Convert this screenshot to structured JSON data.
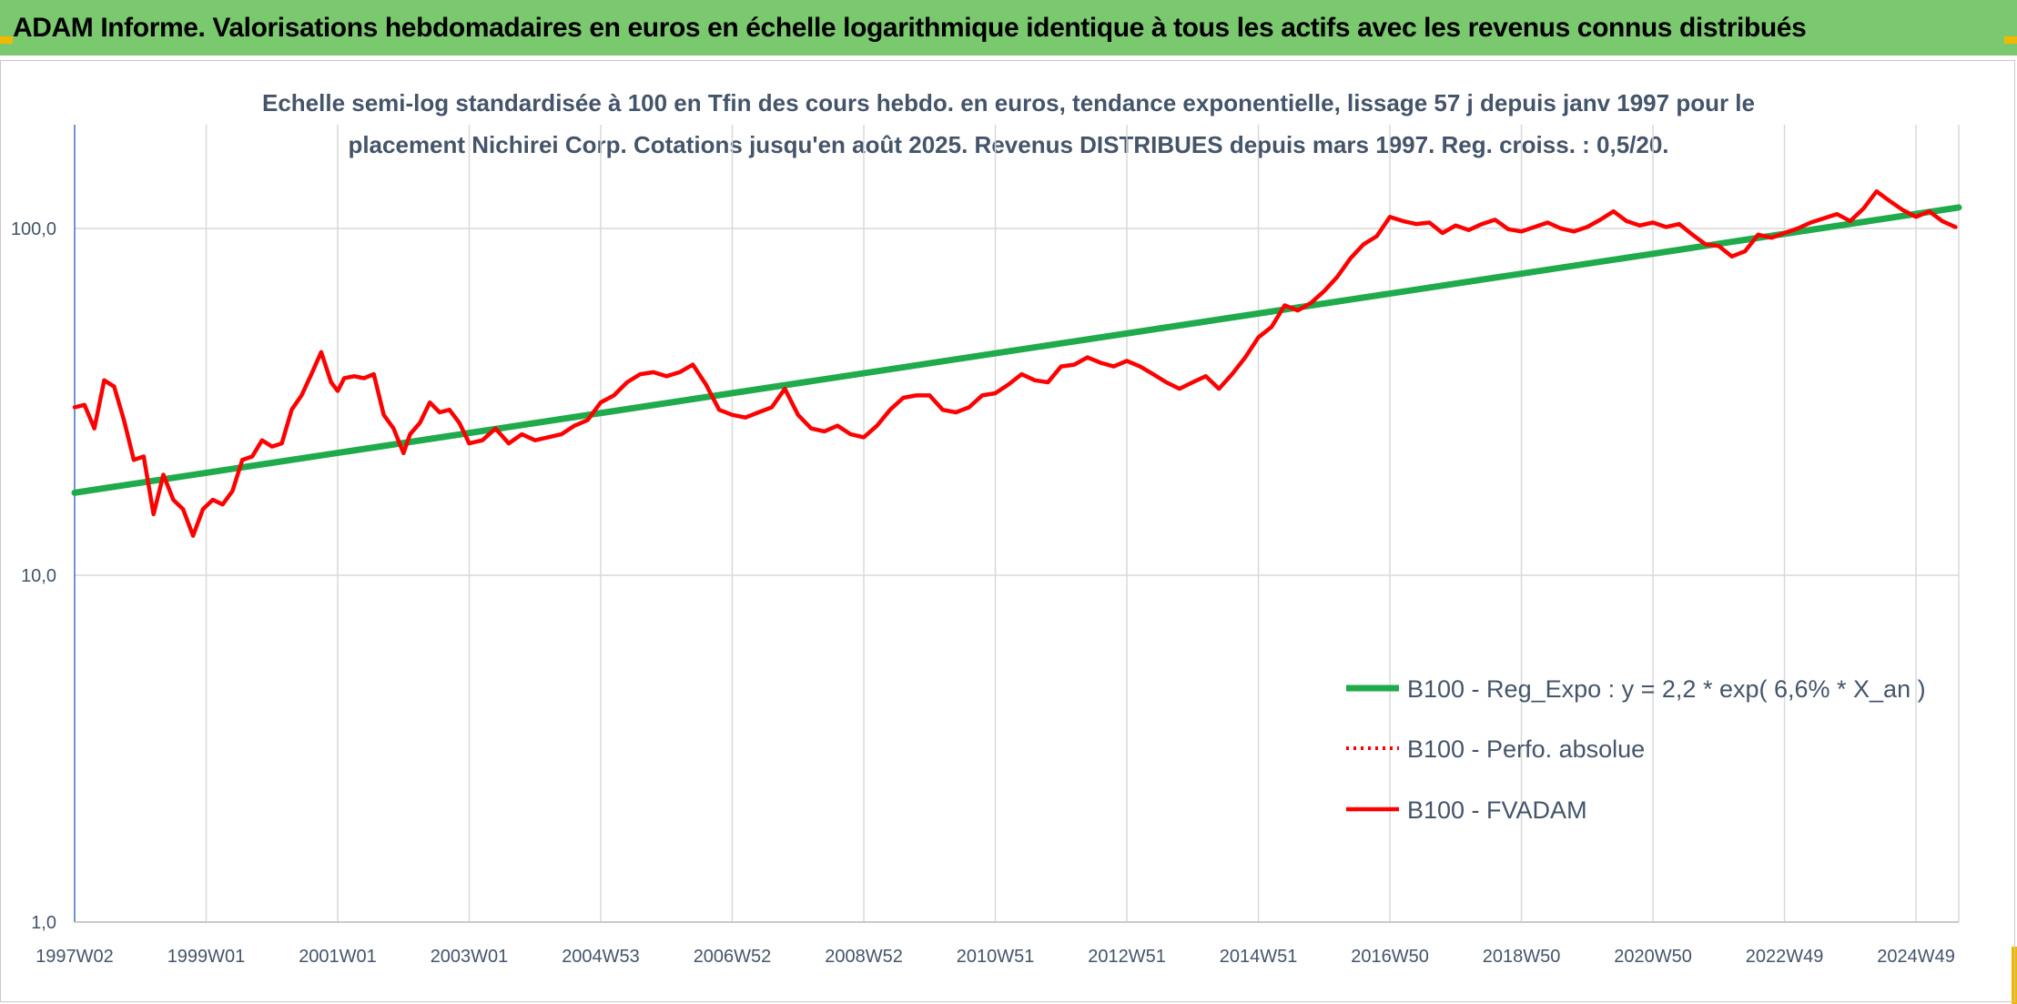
{
  "header": {
    "title": "ADAM Informe. Valorisations hebdomadaires en euros en échelle logarithmique identique à tous les actifs avec les revenus connus distribués"
  },
  "colors": {
    "header_bg": "#7bc96f",
    "corner_accent": "#f2b800",
    "regression": "#1faa4b",
    "fvadam": "#ff0000",
    "perfo": "#ff0000",
    "text": "#44546a"
  },
  "chart_data": {
    "type": "line",
    "title": "",
    "subtitle_line1": "Echelle semi-log standardisée à 100 en Tfin des cours hebdo. en euros, tendance exponentielle, lissage 57 j depuis janv 1997 pour le",
    "subtitle_line2": "placement Nichirei Corp. Cotations jusqu'en août 2025. Revenus DISTRIBUES depuis mars 1997. Reg. croiss. : 0,5/20.",
    "xlabel": "",
    "ylabel": "",
    "y_scale": "log",
    "ylim": [
      1,
      200
    ],
    "y_ticks": [
      1,
      10,
      100
    ],
    "y_tick_labels": [
      "1,0",
      "10,0",
      "100,0"
    ],
    "xlim": [
      1997.0,
      2025.65
    ],
    "x_tick_years": [
      1997.0,
      1999.0,
      2001.0,
      2003.0,
      2005.0,
      2007.0,
      2009.0,
      2011.0,
      2013.0,
      2015.0,
      2017.0,
      2019.0,
      2021.0,
      2023.0,
      2025.0
    ],
    "x_tick_labels": [
      "1997W02",
      "1999W01",
      "2001W01",
      "2003W01",
      "2004W53",
      "2006W52",
      "2008W52",
      "2010W51",
      "2012W51",
      "2014W51",
      "2016W50",
      "2018W50",
      "2020W50",
      "2022W49",
      "2024W49"
    ],
    "grid": true,
    "legend_position": "bottom-right",
    "legend": [
      "B100 - Reg_Expo : y = 2,2 * exp( 6,6% *  X_an )",
      "B100 - Perfo. absolue",
      "B100 - FVADAM"
    ],
    "series": [
      {
        "name": "B100 - Reg_Expo : y = 2,2 * exp( 6,6% *  X_an )",
        "style": "solid-thick",
        "x": [
          1997.0,
          2025.65
        ],
        "y": [
          17.3,
          115
        ]
      },
      {
        "name": "B100 - Perfo. absolue",
        "style": "dotted",
        "x": [],
        "y": []
      },
      {
        "name": "B100 - FVADAM",
        "style": "solid",
        "x": [
          1997.0,
          1997.15,
          1997.3,
          1997.45,
          1997.6,
          1997.75,
          1997.9,
          1998.05,
          1998.2,
          1998.35,
          1998.5,
          1998.65,
          1998.8,
          1998.95,
          1999.1,
          1999.25,
          1999.4,
          1999.55,
          1999.7,
          1999.85,
          2000.0,
          2000.15,
          2000.3,
          2000.45,
          2000.6,
          2000.75,
          2000.9,
          2001.0,
          2001.1,
          2001.25,
          2001.4,
          2001.55,
          2001.7,
          2001.85,
          2002.0,
          2002.1,
          2002.25,
          2002.4,
          2002.55,
          2002.7,
          2002.85,
          2003.0,
          2003.2,
          2003.4,
          2003.6,
          2003.8,
          2004.0,
          2004.2,
          2004.4,
          2004.6,
          2004.8,
          2005.0,
          2005.2,
          2005.4,
          2005.6,
          2005.8,
          2006.0,
          2006.2,
          2006.4,
          2006.6,
          2006.8,
          2007.0,
          2007.2,
          2007.4,
          2007.6,
          2007.8,
          2008.0,
          2008.2,
          2008.4,
          2008.6,
          2008.8,
          2009.0,
          2009.2,
          2009.4,
          2009.6,
          2009.8,
          2010.0,
          2010.2,
          2010.4,
          2010.6,
          2010.8,
          2011.0,
          2011.2,
          2011.4,
          2011.6,
          2011.8,
          2012.0,
          2012.2,
          2012.4,
          2012.6,
          2012.8,
          2013.0,
          2013.2,
          2013.4,
          2013.6,
          2013.8,
          2014.0,
          2014.2,
          2014.4,
          2014.6,
          2014.8,
          2015.0,
          2015.2,
          2015.4,
          2015.6,
          2015.8,
          2016.0,
          2016.2,
          2016.4,
          2016.6,
          2016.8,
          2017.0,
          2017.2,
          2017.4,
          2017.6,
          2017.8,
          2018.0,
          2018.2,
          2018.4,
          2018.6,
          2018.8,
          2019.0,
          2019.2,
          2019.4,
          2019.6,
          2019.8,
          2020.0,
          2020.2,
          2020.4,
          2020.6,
          2020.8,
          2021.0,
          2021.2,
          2021.4,
          2021.6,
          2021.8,
          2022.0,
          2022.2,
          2022.4,
          2022.6,
          2022.8,
          2023.0,
          2023.2,
          2023.4,
          2023.6,
          2023.8,
          2024.0,
          2024.2,
          2024.4,
          2024.6,
          2024.8,
          2025.0,
          2025.2,
          2025.4,
          2025.6
        ],
        "y": [
          30.5,
          31.0,
          26.5,
          36.5,
          35.0,
          28.0,
          21.5,
          22.0,
          15.0,
          19.5,
          16.5,
          15.5,
          13.0,
          15.5,
          16.5,
          16.0,
          17.5,
          21.5,
          22.0,
          24.5,
          23.5,
          24.0,
          30.0,
          33.0,
          38.0,
          44.0,
          36.0,
          34.0,
          37.0,
          37.5,
          37.0,
          38.0,
          29.0,
          26.5,
          22.5,
          25.5,
          27.5,
          31.5,
          29.5,
          30.0,
          27.5,
          24.0,
          24.5,
          26.5,
          24.0,
          25.5,
          24.5,
          25.0,
          25.5,
          27.0,
          28.0,
          31.5,
          33.0,
          36.0,
          38.0,
          38.5,
          37.5,
          38.5,
          40.5,
          35.5,
          30.0,
          29.0,
          28.5,
          29.5,
          30.5,
          34.5,
          29.0,
          26.5,
          26.0,
          27.0,
          25.5,
          25.0,
          27.0,
          30.0,
          32.5,
          33.0,
          33.0,
          30.0,
          29.5,
          30.5,
          33.0,
          33.5,
          35.5,
          38.0,
          36.5,
          36.0,
          40.0,
          40.5,
          42.5,
          41.0,
          40.0,
          41.5,
          40.0,
          38.0,
          36.0,
          34.5,
          36.0,
          37.5,
          34.5,
          38.0,
          42.5,
          48.5,
          52.0,
          60.0,
          58.0,
          61.0,
          66.0,
          72.5,
          82.0,
          90.0,
          95.0,
          108.0,
          105.0,
          103.0,
          104.0,
          97.0,
          102.0,
          99.0,
          103.0,
          106.0,
          99.5,
          98.0,
          101.0,
          104.0,
          100.0,
          98.0,
          101.0,
          106.0,
          112.0,
          105.0,
          102.0,
          104.0,
          101.0,
          103.0,
          96.0,
          90.0,
          89.0,
          83.0,
          86.0,
          96.0,
          94.0,
          97.0,
          100.0,
          104.0,
          107.0,
          110.0,
          105.0,
          114.0,
          128.0,
          120.0,
          113.0,
          108.0,
          112.0,
          105.0,
          101.0
        ]
      }
    ]
  }
}
